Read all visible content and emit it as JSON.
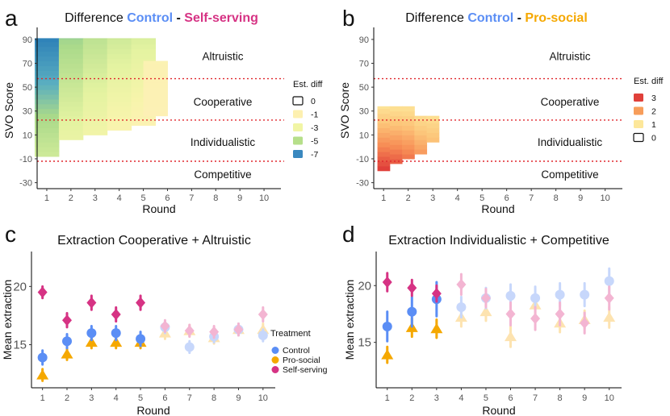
{
  "colors": {
    "control": "#5b8ef5",
    "pro_social": "#f5a800",
    "self_serving": "#d63384",
    "threshold_line": "#e0282e"
  },
  "chart_data": [
    {
      "id": "a",
      "type": "heatmap",
      "panel_label": "a",
      "title_parts": [
        "Difference ",
        "Control",
        " - ",
        "Self-serving"
      ],
      "xlabel": "Round",
      "ylabel": "SVO Score",
      "x_ticks": [
        "1",
        "2",
        "3",
        "4",
        "5",
        "6",
        "7",
        "8",
        "9",
        "10"
      ],
      "y_ticks": [
        "-30",
        "-10",
        "10",
        "30",
        "50",
        "70",
        "90"
      ],
      "xlim": [
        0.6,
        10.7
      ],
      "ylim": [
        -35,
        96
      ],
      "thresholds": [
        57.15,
        22.45,
        -12.04
      ],
      "regions": [
        "Altruistic",
        "Cooperative",
        "Individualistic",
        "Competitive"
      ],
      "legend_title": "Est. diff",
      "legend": [
        {
          "label": "0",
          "color": "#ffffff"
        },
        {
          "label": "-1",
          "color": "#fdf0b0"
        },
        {
          "label": "-3",
          "color": "#f1f5a5"
        },
        {
          "label": "-5",
          "color": "#b6df8a"
        },
        {
          "label": "-7",
          "color": "#3a88bf"
        }
      ],
      "columns": [
        {
          "round": 1,
          "y_min": -8,
          "y_max": 91,
          "diff_top": -7.5,
          "diff_bottom": -3.8
        },
        {
          "round": 2,
          "y_min": 6,
          "y_max": 91,
          "diff_top": -5.2,
          "diff_bottom": -2.6
        },
        {
          "round": 3,
          "y_min": 10,
          "y_max": 91,
          "diff_top": -4.4,
          "diff_bottom": -2.0
        },
        {
          "round": 4,
          "y_min": 14,
          "y_max": 91,
          "diff_top": -3.8,
          "diff_bottom": -1.3
        },
        {
          "round": 5,
          "y_min": 18,
          "y_max": 91,
          "diff_top": -3.4,
          "diff_bottom": -0.9
        },
        {
          "round": 5.5,
          "y_min": 26,
          "y_max": 72,
          "diff_top": -0.9,
          "diff_bottom": -0.6
        }
      ]
    },
    {
      "id": "b",
      "type": "heatmap",
      "panel_label": "b",
      "title_parts": [
        "Difference ",
        "Control",
        " - ",
        "Pro-social"
      ],
      "xlabel": "Round",
      "ylabel": "SVO Score",
      "x_ticks": [
        "1",
        "2",
        "3",
        "4",
        "5",
        "6",
        "7",
        "8",
        "9",
        "10"
      ],
      "y_ticks": [
        "-30",
        "-10",
        "10",
        "30",
        "50",
        "70",
        "90"
      ],
      "xlim": [
        0.6,
        10.7
      ],
      "ylim": [
        -35,
        96
      ],
      "thresholds": [
        57.15,
        22.45,
        -12.04
      ],
      "regions": [
        "Altruistic",
        "Cooperative",
        "Individualistic",
        "Competitive"
      ],
      "legend_title": "Est. diff",
      "legend": [
        {
          "label": "3",
          "color": "#e0403a"
        },
        {
          "label": "2",
          "color": "#f79d5a"
        },
        {
          "label": "1",
          "color": "#fde79a"
        },
        {
          "label": "0",
          "color": "#ffffff"
        }
      ],
      "columns": [
        {
          "round": 1,
          "y_min": -20,
          "y_max": 34,
          "diff_top": 0.8,
          "diff_bottom": 3.0
        },
        {
          "round": 1.5,
          "y_min": -14,
          "y_max": 34,
          "diff_top": 0.8,
          "diff_bottom": 2.7
        },
        {
          "round": 2,
          "y_min": -10,
          "y_max": 34,
          "diff_top": 0.8,
          "diff_bottom": 2.4
        },
        {
          "round": 2.5,
          "y_min": -6,
          "y_max": 26,
          "diff_top": 0.9,
          "diff_bottom": 2.0
        },
        {
          "round": 3,
          "y_min": 4,
          "y_max": 26,
          "diff_top": 0.9,
          "diff_bottom": 1.5
        }
      ]
    },
    {
      "id": "c",
      "type": "scatter",
      "panel_label": "c",
      "title": "Extraction Cooperative + Altruistic",
      "xlabel": "Round",
      "ylabel": "Mean extraction",
      "x_ticks": [
        "1",
        "2",
        "3",
        "4",
        "5",
        "6",
        "7",
        "8",
        "9",
        "10"
      ],
      "y_ticks": [
        "15",
        "20"
      ],
      "ylim": [
        11.3,
        23.0
      ],
      "legend_title": "Treatment",
      "legend": [
        "Control",
        "Pro-social",
        "Self-serving"
      ],
      "significant_rounds": [
        1,
        2,
        3,
        4,
        5
      ],
      "series": [
        {
          "name": "Control",
          "key": "control",
          "marker": "circle",
          "values": [
            13.9,
            15.3,
            16.0,
            16.0,
            15.5,
            16.5,
            14.8,
            15.7,
            16.3,
            15.8
          ],
          "err": [
            0.6,
            0.6,
            0.6,
            0.6,
            0.6,
            0.5,
            0.5,
            0.5,
            0.5,
            0.5
          ]
        },
        {
          "name": "Pro-social",
          "key": "pro_social",
          "marker": "triangle",
          "values": [
            12.4,
            14.2,
            15.2,
            15.2,
            15.2,
            16.0,
            16.2,
            15.6,
            16.3,
            16.3
          ],
          "err": [
            0.5,
            0.5,
            0.5,
            0.5,
            0.5,
            0.5,
            0.5,
            0.5,
            0.5,
            0.5
          ]
        },
        {
          "name": "Self-serving",
          "key": "self_serving",
          "marker": "diamond",
          "values": [
            19.5,
            17.1,
            18.6,
            17.6,
            18.6,
            16.6,
            16.2,
            16.1,
            16.3,
            17.6
          ],
          "err": [
            0.5,
            0.6,
            0.6,
            0.6,
            0.6,
            0.5,
            0.5,
            0.5,
            0.5,
            0.6
          ]
        }
      ]
    },
    {
      "id": "d",
      "type": "scatter",
      "panel_label": "d",
      "title": "Extraction Individualistic + Competitive",
      "xlabel": "Round",
      "ylabel": "Mean extraction",
      "x_ticks": [
        "1",
        "2",
        "3",
        "4",
        "5",
        "6",
        "7",
        "8",
        "9",
        "10"
      ],
      "y_ticks": [
        "15",
        "20"
      ],
      "ylim": [
        11.0,
        23.0
      ],
      "significant_rounds": [
        1,
        2,
        3
      ],
      "series": [
        {
          "name": "Control",
          "key": "control",
          "marker": "circle",
          "values": [
            16.4,
            17.7,
            18.8,
            18.1,
            18.9,
            19.1,
            18.9,
            19.2,
            19.2,
            20.4
          ],
          "err": [
            1.3,
            1.3,
            1.5,
            0.9,
            0.9,
            1.0,
            1.0,
            1.0,
            1.0,
            1.1
          ]
        },
        {
          "name": "Pro-social",
          "key": "pro_social",
          "marker": "triangle",
          "values": [
            13.9,
            16.3,
            16.2,
            17.2,
            17.7,
            15.5,
            18.3,
            16.7,
            17.0,
            17.2
          ],
          "err": [
            0.7,
            0.8,
            0.8,
            0.8,
            0.8,
            0.9,
            0.8,
            0.8,
            0.8,
            0.9
          ]
        },
        {
          "name": "Self-serving",
          "key": "self_serving",
          "marker": "diamond",
          "values": [
            20.3,
            19.8,
            19.3,
            20.1,
            18.9,
            17.5,
            17.1,
            17.5,
            16.7,
            18.9
          ],
          "err": [
            0.8,
            0.7,
            0.7,
            0.9,
            0.8,
            1.0,
            1.0,
            1.0,
            0.9,
            1.0
          ]
        }
      ]
    }
  ]
}
